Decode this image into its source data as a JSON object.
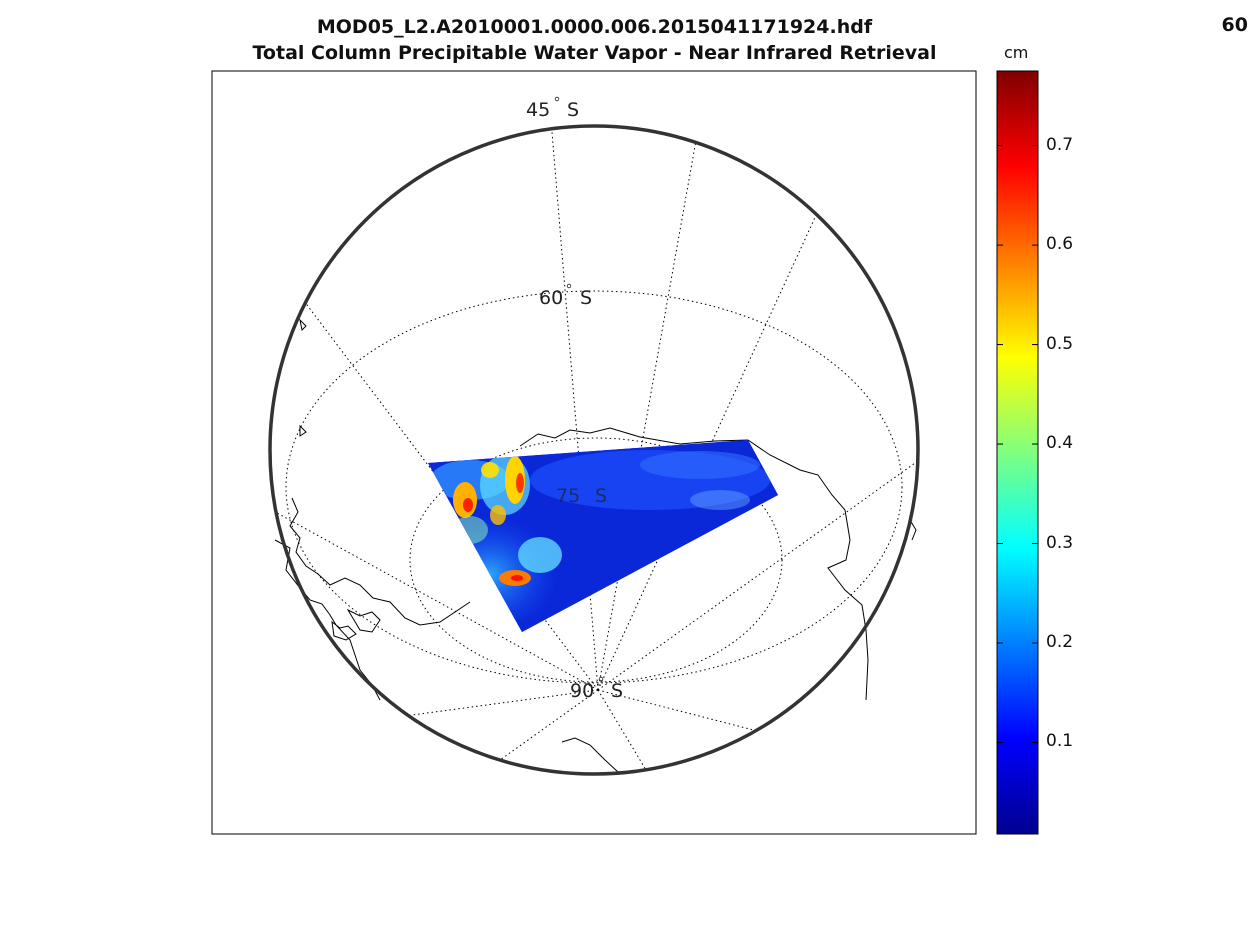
{
  "figure": {
    "title_line1": "MOD05_L2.A2010001.0000.006.2015041171924.hdf",
    "title_line2": "Total Column Precipitable Water Vapor - Near Infrared Retrieval",
    "corner_label": "60"
  },
  "map": {
    "projection": "south polar stereographic",
    "latitude_labels": [
      {
        "lat": -45,
        "text": "45",
        "hem": "S"
      },
      {
        "lat": -60,
        "text": "60",
        "hem": "S"
      },
      {
        "lat": -75,
        "text": "75",
        "hem": "S"
      },
      {
        "lat": -90,
        "text": "90",
        "hem": "S"
      }
    ]
  },
  "colorbar": {
    "unit": "cm",
    "colormap": "jet",
    "range": [
      0.008,
      0.775
    ],
    "ticks": [
      0.1,
      0.2,
      0.3,
      0.4,
      0.5,
      0.6,
      0.7
    ],
    "tick_labels": [
      "0.1",
      "0.2",
      "0.3",
      "0.4",
      "0.5",
      "0.6",
      "0.7"
    ]
  },
  "colors": {
    "frame": "#000000",
    "coastline": "#000000",
    "graticule": "#000000"
  }
}
